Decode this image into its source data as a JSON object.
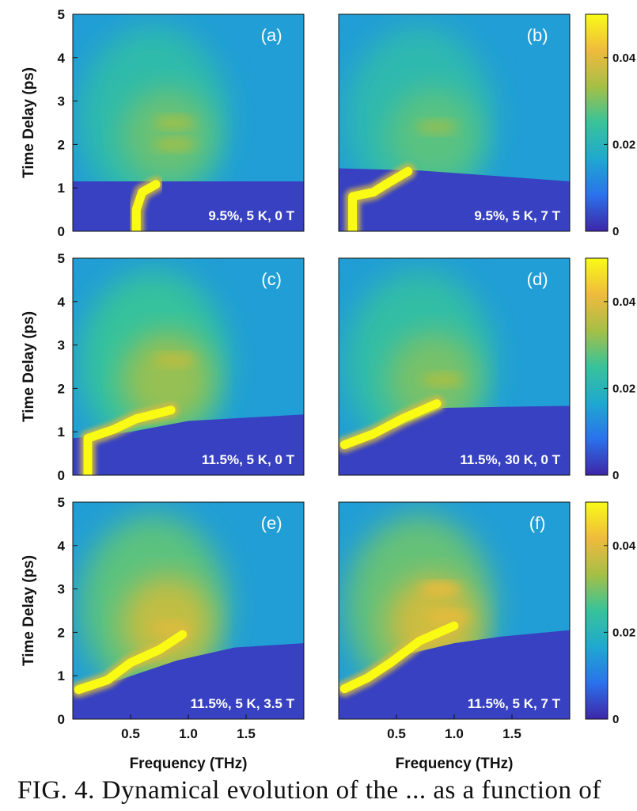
{
  "chart_data": {
    "type": "heatmap",
    "xlabel": "Frequency (THz)",
    "ylabel": "Time Delay (ps)",
    "xlim": [
      0,
      2.0
    ],
    "ylim": [
      0,
      5
    ],
    "xticks": [
      {
        "value": 0.5,
        "label": "0.5"
      },
      {
        "value": 1.0,
        "label": "1.0"
      },
      {
        "value": 1.5,
        "label": "1.5"
      }
    ],
    "yticks": [
      {
        "value": 0,
        "label": "0"
      },
      {
        "value": 1,
        "label": "1"
      },
      {
        "value": 2,
        "label": "2"
      },
      {
        "value": 3,
        "label": "3"
      },
      {
        "value": 4,
        "label": "4"
      },
      {
        "value": 5,
        "label": "5"
      }
    ],
    "colorbar": {
      "range": [
        0,
        0.05
      ],
      "ticks": [
        {
          "value": 0,
          "label": "0"
        },
        {
          "value": 0.02,
          "label": "0.02"
        },
        {
          "value": 0.04,
          "label": "0.04"
        }
      ],
      "colormap": [
        "#3e26a8",
        "#2b71ed",
        "#1ea9cf",
        "#37c39a",
        "#a6bf46",
        "#f0ba3c",
        "#f9fb15"
      ]
    },
    "panels": [
      {
        "id": "a",
        "label": "(a)",
        "condition": "9.5%, 5 K, 0 T",
        "edge": [
          [
            0,
            1.15
          ],
          [
            2.0,
            1.15
          ]
        ],
        "band_level": 0.5,
        "ridge": [
          [
            0.55,
            0.0
          ],
          [
            0.55,
            0.5
          ],
          [
            0.6,
            0.9
          ],
          [
            0.72,
            1.08
          ]
        ],
        "hot": [
          [
            0.88,
            2.0
          ],
          [
            0.88,
            2.5
          ]
        ]
      },
      {
        "id": "b",
        "label": "(b)",
        "condition": "9.5%, 5 K, 7 T",
        "edge": [
          [
            0,
            1.45
          ],
          [
            0.7,
            1.4
          ],
          [
            2.0,
            1.15
          ]
        ],
        "band_level": 0.45,
        "ridge": [
          [
            0.12,
            0.0
          ],
          [
            0.12,
            0.8
          ],
          [
            0.3,
            0.9
          ],
          [
            0.42,
            1.1
          ],
          [
            0.6,
            1.38
          ]
        ],
        "hot": [
          [
            0.85,
            2.4
          ]
        ]
      },
      {
        "id": "c",
        "label": "(c)",
        "condition": "11.5%, 5 K, 0 T",
        "edge": [
          [
            0,
            0.85
          ],
          [
            0.5,
            1.0
          ],
          [
            1.0,
            1.25
          ],
          [
            2.0,
            1.4
          ]
        ],
        "band_level": 0.65,
        "ridge": [
          [
            0.13,
            0.0
          ],
          [
            0.13,
            0.85
          ],
          [
            0.35,
            1.05
          ],
          [
            0.55,
            1.3
          ],
          [
            0.85,
            1.5
          ]
        ],
        "hot": [
          [
            0.88,
            2.65
          ]
        ]
      },
      {
        "id": "d",
        "label": "(d)",
        "condition": "11.5%, 30 K, 0 T",
        "edge": [
          [
            0,
            0.7
          ],
          [
            0.5,
            1.1
          ],
          [
            0.9,
            1.55
          ],
          [
            2.0,
            1.6
          ]
        ],
        "band_level": 0.55,
        "ridge": [
          [
            0.05,
            0.7
          ],
          [
            0.3,
            0.95
          ],
          [
            0.55,
            1.3
          ],
          [
            0.85,
            1.65
          ]
        ],
        "hot": [
          [
            0.9,
            2.2
          ]
        ]
      },
      {
        "id": "e",
        "label": "(e)",
        "condition": "11.5%, 5 K, 3.5 T",
        "edge": [
          [
            0,
            0.68
          ],
          [
            0.4,
            0.9
          ],
          [
            0.9,
            1.35
          ],
          [
            1.4,
            1.65
          ],
          [
            2.0,
            1.75
          ]
        ],
        "band_level": 0.85,
        "ridge": [
          [
            0.05,
            0.68
          ],
          [
            0.3,
            0.9
          ],
          [
            0.5,
            1.3
          ],
          [
            0.75,
            1.6
          ],
          [
            0.95,
            1.95
          ]
        ],
        "hot": [
          [
            0.85,
            2.1
          ]
        ]
      },
      {
        "id": "f",
        "label": "(f)",
        "condition": "11.5%, 5 K, 7 T",
        "edge": [
          [
            0,
            0.7
          ],
          [
            0.3,
            0.95
          ],
          [
            0.6,
            1.5
          ],
          [
            1.0,
            1.75
          ],
          [
            1.4,
            1.9
          ],
          [
            2.0,
            2.05
          ]
        ],
        "band_level": 0.9,
        "ridge": [
          [
            0.05,
            0.7
          ],
          [
            0.25,
            0.95
          ],
          [
            0.45,
            1.3
          ],
          [
            0.7,
            1.8
          ],
          [
            1.0,
            2.15
          ]
        ],
        "hot": [
          [
            0.95,
            2.35
          ],
          [
            0.88,
            3.0
          ]
        ]
      }
    ]
  },
  "caption": "FIG. 4.  Dynamical evolution of the ... as a function of"
}
